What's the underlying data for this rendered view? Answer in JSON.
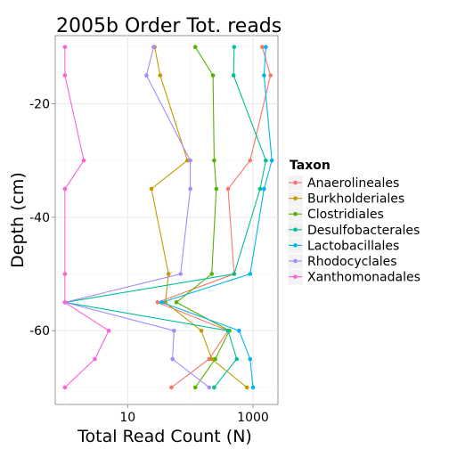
{
  "chart_data": {
    "type": "line",
    "title": "2005b Order Tot. reads",
    "xlabel": "Total Read Count (N)",
    "ylabel": "Depth (cm)",
    "x_scale": "log10",
    "xlim": [
      0.7,
      2500
    ],
    "ylim": [
      -73,
      -8
    ],
    "x_ticks": [
      10,
      1000
    ],
    "x_tick_labels": [
      "10",
      "1000"
    ],
    "y_ticks": [
      -20,
      -40,
      -60
    ],
    "y_tick_labels": [
      "-20",
      "-40",
      "-60"
    ],
    "grid": true,
    "legend": {
      "title": "Taxon",
      "position": "right"
    },
    "series": [
      {
        "name": "Anaerolineales",
        "color": "#F8766D",
        "points": [
          [
            1400,
            -10
          ],
          [
            1900,
            -15
          ],
          [
            900,
            -30
          ],
          [
            400,
            -35
          ],
          [
            500,
            -50
          ],
          [
            30,
            -55
          ],
          [
            400,
            -60
          ],
          [
            200,
            -65
          ],
          [
            50,
            -70
          ]
        ]
      },
      {
        "name": "Burkholderiales",
        "color": "#C49A00",
        "points": [
          [
            27,
            -10
          ],
          [
            33,
            -15
          ],
          [
            90,
            -30
          ],
          [
            24,
            -35
          ],
          [
            45,
            -50
          ],
          [
            40,
            -55
          ],
          [
            150,
            -60
          ],
          [
            220,
            -65
          ],
          [
            800,
            -70
          ]
        ]
      },
      {
        "name": "Clostridiales",
        "color": "#53B400",
        "points": [
          [
            120,
            -10
          ],
          [
            230,
            -15
          ],
          [
            240,
            -30
          ],
          [
            260,
            -35
          ],
          [
            220,
            -50
          ],
          [
            60,
            -55
          ],
          [
            420,
            -60
          ],
          [
            250,
            -65
          ],
          [
            120,
            -70
          ]
        ]
      },
      {
        "name": "Desulfobacterales",
        "color": "#00C094",
        "points": [
          [
            500,
            -10
          ],
          [
            490,
            -15
          ],
          [
            1600,
            -30
          ],
          [
            1300,
            -35
          ],
          [
            500,
            -50
          ],
          [
            1,
            -55
          ],
          [
            400,
            -60
          ],
          [
            550,
            -65
          ],
          [
            240,
            -70
          ]
        ]
      },
      {
        "name": "Lactobacillales",
        "color": "#00B6EB",
        "points": [
          [
            1600,
            -10
          ],
          [
            1500,
            -15
          ],
          [
            2000,
            -30
          ],
          [
            1500,
            -35
          ],
          [
            900,
            -50
          ],
          [
            35,
            -55
          ],
          [
            600,
            -60
          ],
          [
            900,
            -65
          ],
          [
            1000,
            -70
          ]
        ]
      },
      {
        "name": "Rhodocyclales",
        "color": "#A58AFF",
        "points": [
          [
            26,
            -10
          ],
          [
            20,
            -15
          ],
          [
            100,
            -30
          ],
          [
            100,
            -35
          ],
          [
            70,
            -50
          ],
          [
            1,
            -55
          ],
          [
            55,
            -60
          ],
          [
            52,
            -65
          ],
          [
            200,
            -70
          ]
        ]
      },
      {
        "name": "Xanthomonadales",
        "color": "#FB61D7",
        "points": [
          [
            1,
            -10
          ],
          [
            1,
            -15
          ],
          [
            2,
            -30
          ],
          [
            1,
            -35
          ],
          [
            1,
            -50
          ],
          [
            1,
            -55
          ],
          [
            5,
            -60
          ],
          [
            3,
            -65
          ],
          [
            1,
            -70
          ]
        ]
      }
    ]
  }
}
